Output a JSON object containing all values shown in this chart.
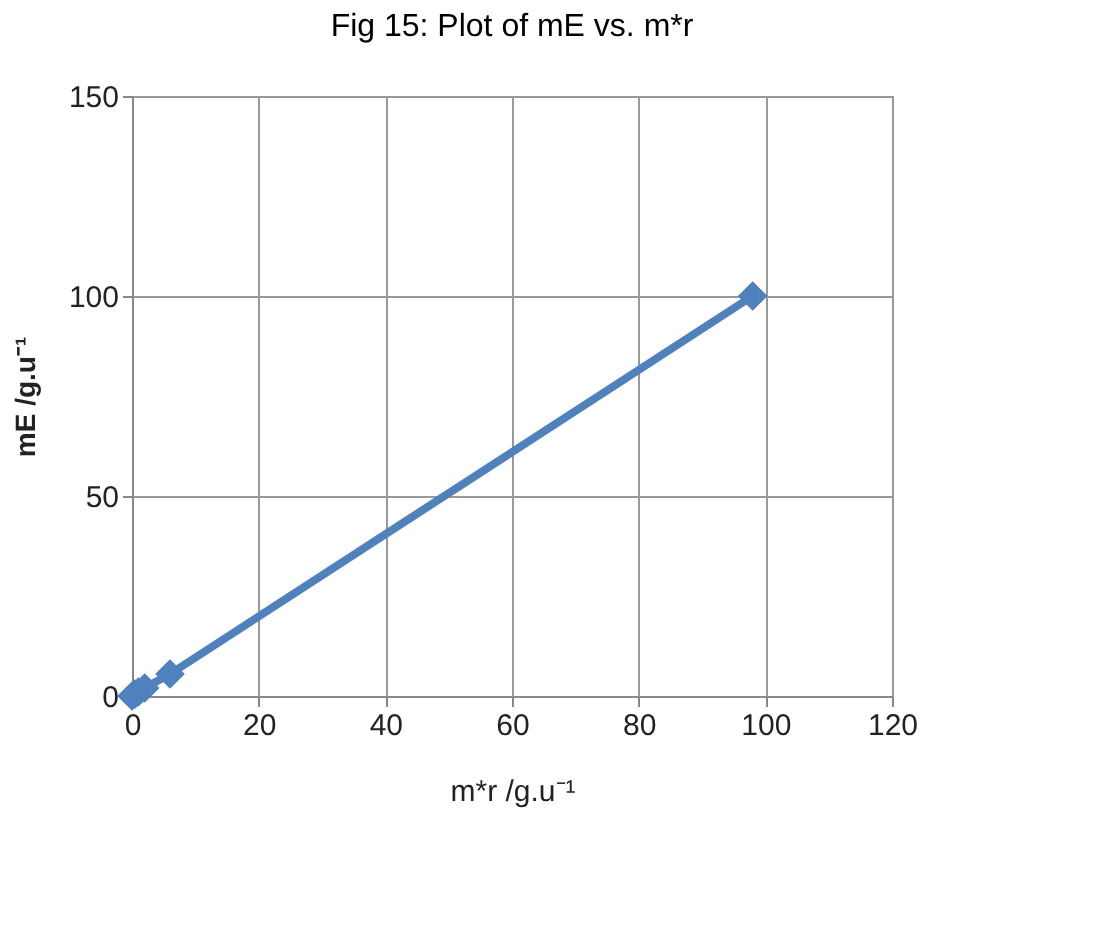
{
  "chart_data": {
    "type": "line",
    "title": "Fig 15: Plot of mE vs.  m*r",
    "xlabel": "m*r /g.u⁻¹",
    "ylabel": "mE /g.u⁻¹",
    "x": [
      0,
      0.5,
      1,
      2,
      6,
      98
    ],
    "series": [
      {
        "color": "#4f81bd",
        "values": [
          0,
          0.5,
          1,
          2,
          5.5,
          100
        ]
      }
    ],
    "xlim": [
      0,
      120
    ],
    "xticks": [
      0,
      20,
      40,
      60,
      80,
      100,
      120
    ],
    "ylim": [
      0,
      150
    ],
    "yticks": [
      0,
      50,
      100,
      150
    ],
    "grid": true,
    "marker": "diamond",
    "line_style": "solid"
  }
}
